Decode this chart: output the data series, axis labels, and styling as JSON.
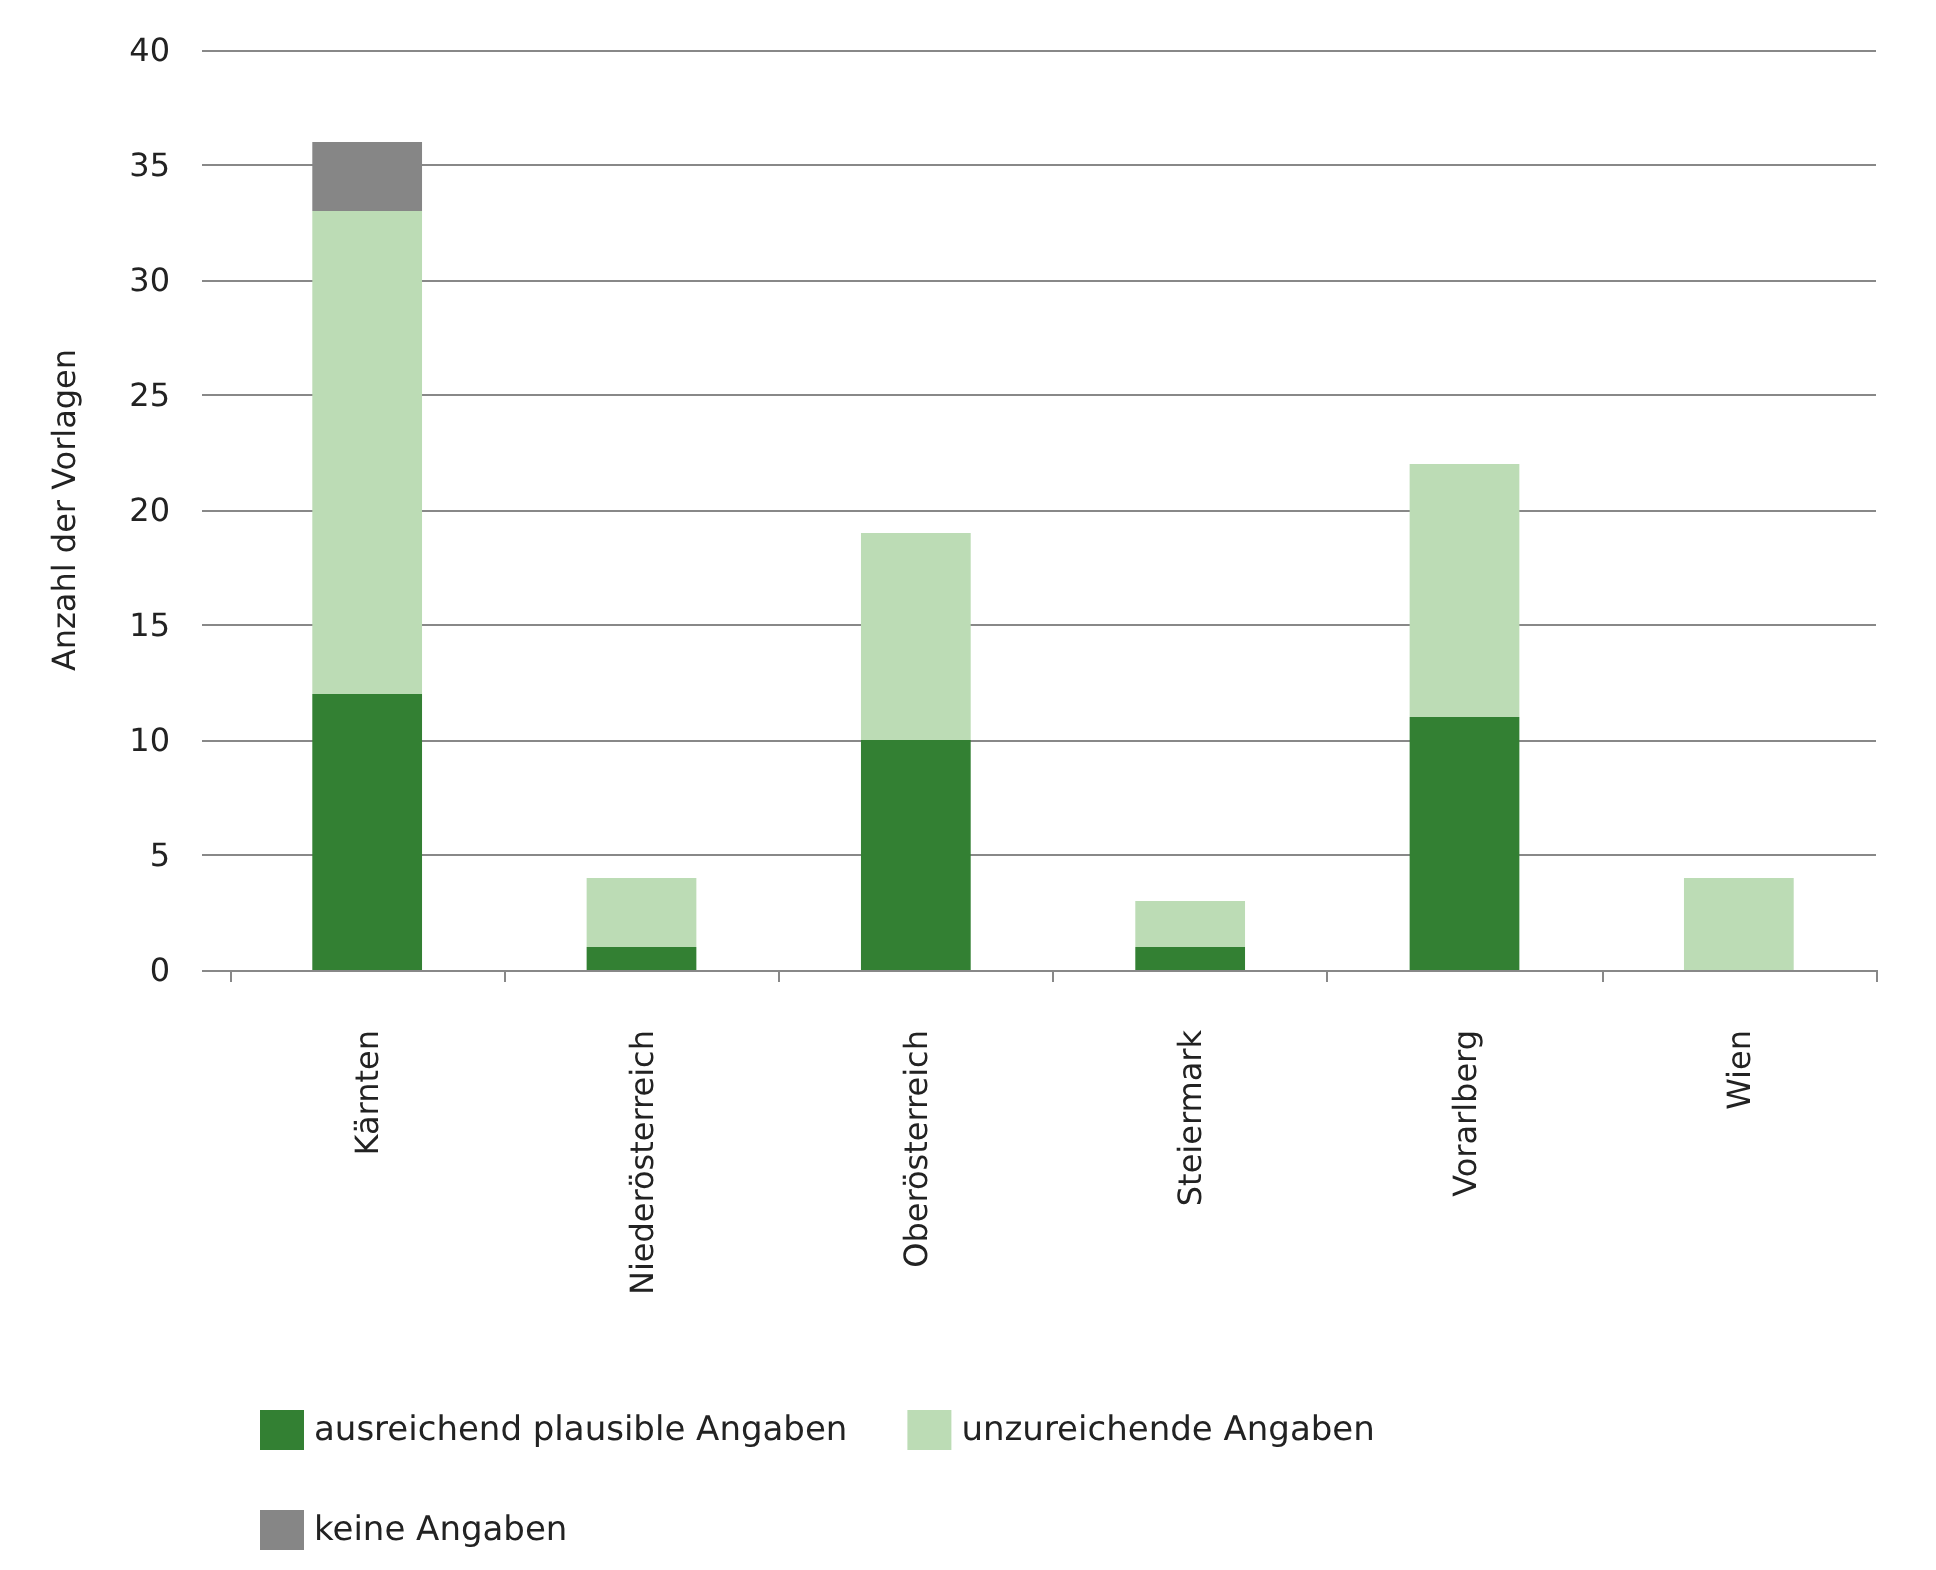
{
  "chart_data": {
    "type": "bar",
    "stacked": true,
    "ylabel": "Anzahl der Vorlagen",
    "categories": [
      "Kärnten",
      "Niederösterreich",
      "Oberösterreich",
      "Steiermark",
      "Vorarlberg",
      "Wien"
    ],
    "series": [
      {
        "name": "ausreichend plausible Angaben",
        "color": "#338033",
        "values": [
          12,
          1,
          10,
          1,
          11,
          0
        ]
      },
      {
        "name": "unzureichende Angaben",
        "color": "#bcdcb5",
        "values": [
          21,
          3,
          9,
          2,
          11,
          4
        ]
      },
      {
        "name": "keine Angaben",
        "color": "#868686",
        "values": [
          3,
          0,
          0,
          0,
          0,
          0
        ]
      }
    ],
    "ylim": [
      0,
      40
    ],
    "yticks": [
      0,
      5,
      10,
      15,
      20,
      25,
      30,
      35,
      40
    ],
    "grid": "y",
    "legend": "bottom"
  }
}
